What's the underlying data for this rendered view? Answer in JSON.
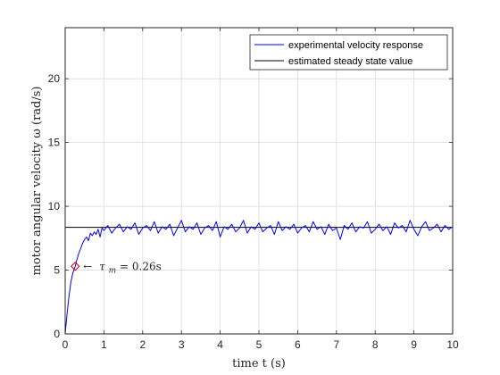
{
  "chart_data": {
    "type": "line",
    "xlabel": "time t (s)",
    "ylabel": "motor angular velocity ω (rad/s)",
    "xlim": [
      0,
      10
    ],
    "ylim": [
      0,
      24
    ],
    "x_ticks": [
      0,
      1,
      2,
      3,
      4,
      5,
      6,
      7,
      8,
      9,
      10
    ],
    "y_ticks": [
      0,
      5,
      10,
      15,
      20
    ],
    "grid": true,
    "legend_position": "top-right",
    "series": [
      {
        "name": "experimental velocity response",
        "color": "#0000ff",
        "x": [
          0,
          0.05,
          0.1,
          0.15,
          0.2,
          0.26,
          0.3,
          0.35,
          0.4,
          0.45,
          0.5,
          0.55,
          0.6,
          0.65,
          0.7,
          0.75,
          0.8,
          0.85,
          0.9,
          0.95,
          1.0,
          1.1,
          1.2,
          1.3,
          1.4,
          1.5,
          1.6,
          1.7,
          1.8,
          1.9,
          2.0,
          2.1,
          2.2,
          2.3,
          2.4,
          2.5,
          2.6,
          2.7,
          2.8,
          2.9,
          3.0,
          3.1,
          3.2,
          3.3,
          3.4,
          3.5,
          3.6,
          3.7,
          3.8,
          3.9,
          4.0,
          4.1,
          4.2,
          4.3,
          4.4,
          4.5,
          4.6,
          4.7,
          4.8,
          4.9,
          5.0,
          5.1,
          5.2,
          5.3,
          5.4,
          5.5,
          5.6,
          5.7,
          5.8,
          5.9,
          6.0,
          6.1,
          6.2,
          6.3,
          6.4,
          6.5,
          6.6,
          6.7,
          6.8,
          6.9,
          7.0,
          7.1,
          7.2,
          7.3,
          7.4,
          7.5,
          7.6,
          7.7,
          7.8,
          7.9,
          8.0,
          8.1,
          8.2,
          8.3,
          8.4,
          8.5,
          8.6,
          8.7,
          8.8,
          8.9,
          9.0,
          9.1,
          9.2,
          9.3,
          9.4,
          9.5,
          9.6,
          9.7,
          9.8,
          9.9,
          10.0
        ],
        "y": [
          0,
          1.6,
          3.0,
          4.1,
          4.8,
          5.3,
          5.8,
          6.3,
          6.7,
          7.1,
          7.4,
          7.6,
          7.3,
          7.9,
          7.7,
          8.0,
          7.8,
          8.2,
          7.6,
          8.3,
          8.1,
          8.5,
          7.9,
          8.3,
          8.6,
          8.0,
          8.4,
          8.2,
          8.7,
          7.8,
          8.3,
          8.5,
          8.1,
          8.8,
          7.9,
          8.4,
          8.2,
          8.6,
          7.7,
          8.3,
          8.9,
          8.0,
          8.4,
          8.2,
          8.7,
          7.8,
          8.3,
          8.5,
          8.1,
          8.8,
          7.6,
          8.4,
          8.2,
          8.6,
          8.0,
          8.3,
          8.9,
          7.9,
          8.4,
          8.2,
          8.7,
          8.0,
          8.3,
          8.5,
          7.8,
          8.8,
          8.1,
          8.4,
          8.2,
          8.6,
          7.9,
          8.3,
          8.5,
          8.0,
          8.8,
          8.2,
          8.4,
          7.8,
          8.6,
          8.1,
          8.3,
          7.4,
          8.5,
          8.2,
          8.7,
          8.0,
          8.4,
          8.3,
          8.8,
          7.9,
          8.2,
          8.6,
          8.1,
          8.4,
          7.8,
          8.7,
          8.3,
          8.5,
          8.0,
          8.9,
          8.2,
          7.7,
          8.4,
          8.8,
          8.1,
          8.3,
          8.6,
          8.0,
          8.5,
          8.2,
          8.4
        ]
      },
      {
        "name": "estimated steady state value",
        "color": "#000000",
        "x": [
          0,
          10
        ],
        "y": [
          8.35,
          8.35
        ]
      }
    ],
    "marker": {
      "x": 0.26,
      "y": 5.3,
      "color": "#cc0000"
    },
    "annotation": {
      "arrow": "←",
      "symbol": "τ",
      "subscript": "m",
      "value": " = 0.26s",
      "x": 0.26,
      "y": 5.3
    }
  }
}
